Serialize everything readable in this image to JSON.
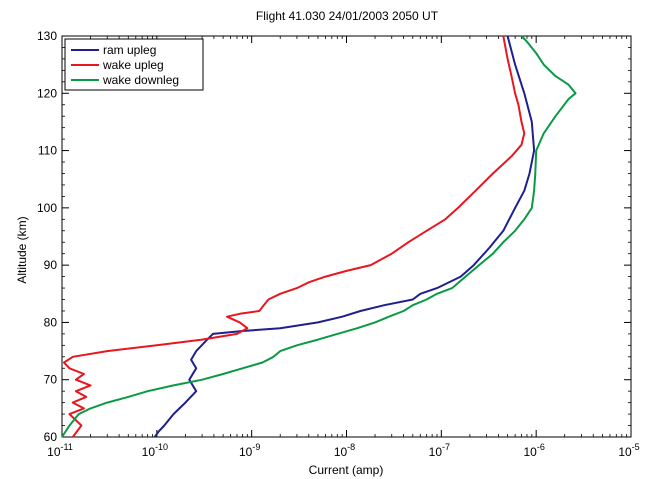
{
  "chart_data": {
    "type": "line",
    "title": "Flight 41.030   24/01/2003   2050 UT",
    "xlabel": "Current  (amp)",
    "ylabel": "Altitude  (km)",
    "x_scale": "log",
    "xlim": [
      1e-11,
      1e-05
    ],
    "ylim": [
      60,
      130
    ],
    "x_ticks": [
      {
        "base": "10",
        "exp": "-11"
      },
      {
        "base": "10",
        "exp": "-10"
      },
      {
        "base": "10",
        "exp": "-9"
      },
      {
        "base": "10",
        "exp": "-8"
      },
      {
        "base": "10",
        "exp": "-7"
      },
      {
        "base": "10",
        "exp": "-6"
      },
      {
        "base": "10",
        "exp": "-5"
      }
    ],
    "y_ticks": [
      "60",
      "70",
      "80",
      "90",
      "100",
      "110",
      "120",
      "130"
    ],
    "grid": false,
    "legend_position": "top-left",
    "series": [
      {
        "name": "ram upleg",
        "color": "#1f1f8f",
        "points": [
          [
            9.5e-11,
            60
          ],
          [
            1.05e-10,
            61
          ],
          [
            1.2e-10,
            62
          ],
          [
            1.5e-10,
            64
          ],
          [
            2e-10,
            66
          ],
          [
            2.6e-10,
            68
          ],
          [
            2.2e-10,
            70
          ],
          [
            2.6e-10,
            72
          ],
          [
            2.3e-10,
            73.5
          ],
          [
            2.6e-10,
            75
          ],
          [
            3.4e-10,
            77
          ],
          [
            3.9e-10,
            78
          ],
          [
            8e-10,
            78.5
          ],
          [
            2e-09,
            79
          ],
          [
            5e-09,
            80
          ],
          [
            9e-09,
            81
          ],
          [
            1.4e-08,
            82
          ],
          [
            2.5e-08,
            83
          ],
          [
            5e-08,
            84
          ],
          [
            6e-08,
            85
          ],
          [
            9e-08,
            86
          ],
          [
            1.6e-07,
            88
          ],
          [
            2.2e-07,
            90
          ],
          [
            3.2e-07,
            93
          ],
          [
            4.5e-07,
            96
          ],
          [
            6e-07,
            100
          ],
          [
            7.5e-07,
            103
          ],
          [
            8.5e-07,
            106
          ],
          [
            9.5e-07,
            110
          ],
          [
            9e-07,
            115
          ],
          [
            7.5e-07,
            120
          ],
          [
            6e-07,
            125
          ],
          [
            5e-07,
            130
          ]
        ]
      },
      {
        "name": "wake upleg",
        "color": "#e8161e",
        "points": [
          [
            1.3e-11,
            60
          ],
          [
            1.6e-11,
            62
          ],
          [
            1.2e-11,
            64
          ],
          [
            1.7e-11,
            65
          ],
          [
            1.3e-11,
            66
          ],
          [
            1.8e-11,
            67
          ],
          [
            1.4e-11,
            68
          ],
          [
            2e-11,
            69
          ],
          [
            1.4e-11,
            70
          ],
          [
            1.7e-11,
            71
          ],
          [
            1.2e-11,
            72
          ],
          [
            1.05e-11,
            73
          ],
          [
            1.3e-11,
            74
          ],
          [
            3e-11,
            75
          ],
          [
            1e-10,
            76
          ],
          [
            3e-10,
            77
          ],
          [
            7e-10,
            78
          ],
          [
            9e-10,
            79
          ],
          [
            7.5e-10,
            80
          ],
          [
            5.5e-10,
            81
          ],
          [
            7.5e-10,
            81.5
          ],
          [
            1.2e-09,
            82
          ],
          [
            1.5e-09,
            84
          ],
          [
            2e-09,
            85
          ],
          [
            3e-09,
            86
          ],
          [
            4e-09,
            87
          ],
          [
            6e-09,
            88
          ],
          [
            1e-08,
            89
          ],
          [
            1.8e-08,
            90
          ],
          [
            3e-08,
            92
          ],
          [
            4.5e-08,
            94
          ],
          [
            7e-08,
            96
          ],
          [
            1.1e-07,
            98
          ],
          [
            1.5e-07,
            100
          ],
          [
            2.3e-07,
            103
          ],
          [
            3.5e-07,
            106
          ],
          [
            5.5e-07,
            109
          ],
          [
            7e-07,
            111
          ],
          [
            7.5e-07,
            113
          ],
          [
            7e-07,
            115
          ],
          [
            6.5e-07,
            118
          ],
          [
            6e-07,
            120
          ],
          [
            5.5e-07,
            123
          ],
          [
            5e-07,
            126
          ],
          [
            4.5e-07,
            130
          ]
        ]
      },
      {
        "name": "wake downleg",
        "color": "#0a9a44",
        "points": [
          [
            1e-11,
            60
          ],
          [
            1.2e-11,
            62
          ],
          [
            1.5e-11,
            64
          ],
          [
            2e-11,
            65
          ],
          [
            3e-11,
            66
          ],
          [
            5e-11,
            67
          ],
          [
            8e-11,
            68
          ],
          [
            1.5e-10,
            69
          ],
          [
            3e-10,
            70
          ],
          [
            5e-10,
            71
          ],
          [
            8e-10,
            72
          ],
          [
            1.3e-09,
            73
          ],
          [
            1.7e-09,
            74
          ],
          [
            2e-09,
            75
          ],
          [
            3e-09,
            76
          ],
          [
            5e-09,
            77
          ],
          [
            8e-09,
            78
          ],
          [
            1.3e-08,
            79
          ],
          [
            2e-08,
            80
          ],
          [
            2.8e-08,
            81
          ],
          [
            4e-08,
            82
          ],
          [
            5e-08,
            83
          ],
          [
            7e-08,
            84
          ],
          [
            9e-08,
            85
          ],
          [
            1.3e-07,
            86
          ],
          [
            1.8e-07,
            88
          ],
          [
            2.5e-07,
            90
          ],
          [
            3.5e-07,
            92
          ],
          [
            4.5e-07,
            94
          ],
          [
            6e-07,
            96
          ],
          [
            7.5e-07,
            98
          ],
          [
            9e-07,
            100
          ],
          [
            9.5e-07,
            103
          ],
          [
            9.8e-07,
            106
          ],
          [
            1e-06,
            110
          ],
          [
            1.2e-06,
            113
          ],
          [
            1.6e-06,
            116
          ],
          [
            2.2e-06,
            119
          ],
          [
            2.6e-06,
            120
          ],
          [
            2.2e-06,
            121.5
          ],
          [
            1.6e-06,
            123
          ],
          [
            1.2e-06,
            125
          ],
          [
            1e-06,
            127
          ],
          [
            8e-07,
            129
          ],
          [
            7e-07,
            130
          ]
        ]
      }
    ]
  }
}
